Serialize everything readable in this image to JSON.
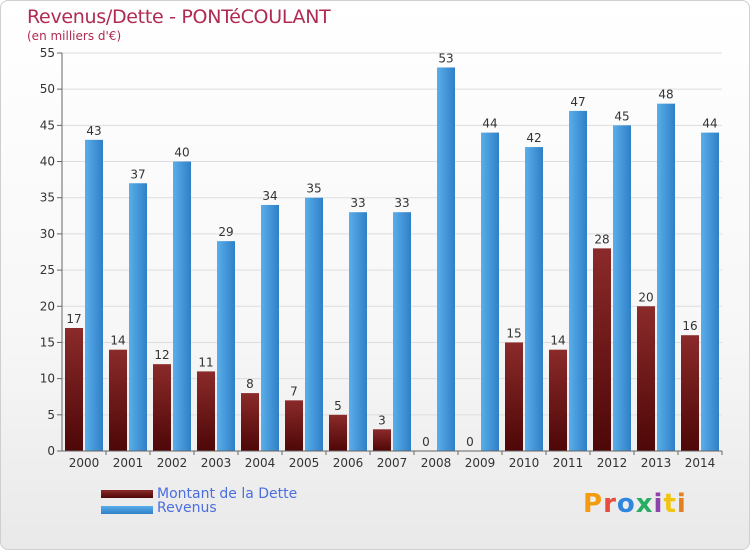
{
  "title": "Revenus/Dette - PONTéCOULANT",
  "subtitle": "(en milliers d'€)",
  "legend": {
    "debt_label": "Montant de la Dette",
    "revenue_label": "Revenus"
  },
  "logo": {
    "text": "Proxiti",
    "colors": [
      "#f39c12",
      "#e74c3c",
      "#2e86de",
      "#27ae60",
      "#8e44ad",
      "#f1c40f",
      "#e67e22"
    ]
  },
  "colors": {
    "debt_top": "#8b2a2a",
    "debt_bottom": "#4e0707",
    "revenue_top": "#5aaeea",
    "revenue_bottom": "#2f7fc6",
    "title": "#b02a52"
  },
  "chart_data": {
    "type": "bar",
    "categories": [
      "2000",
      "2001",
      "2002",
      "2003",
      "2004",
      "2005",
      "2006",
      "2007",
      "2008",
      "2009",
      "2010",
      "2011",
      "2012",
      "2013",
      "2014"
    ],
    "series": [
      {
        "name": "Montant de la Dette",
        "values": [
          17,
          14,
          12,
          11,
          8,
          7,
          5,
          3,
          0,
          0,
          15,
          14,
          28,
          20,
          16
        ]
      },
      {
        "name": "Revenus",
        "values": [
          43,
          37,
          40,
          29,
          34,
          35,
          33,
          33,
          53,
          44,
          42,
          47,
          45,
          48,
          44
        ]
      }
    ],
    "ylim": [
      0,
      55
    ],
    "yticks": [
      0,
      5,
      10,
      15,
      20,
      25,
      30,
      35,
      40,
      45,
      50,
      55
    ],
    "grid": true,
    "legend_position": "bottom-left"
  }
}
